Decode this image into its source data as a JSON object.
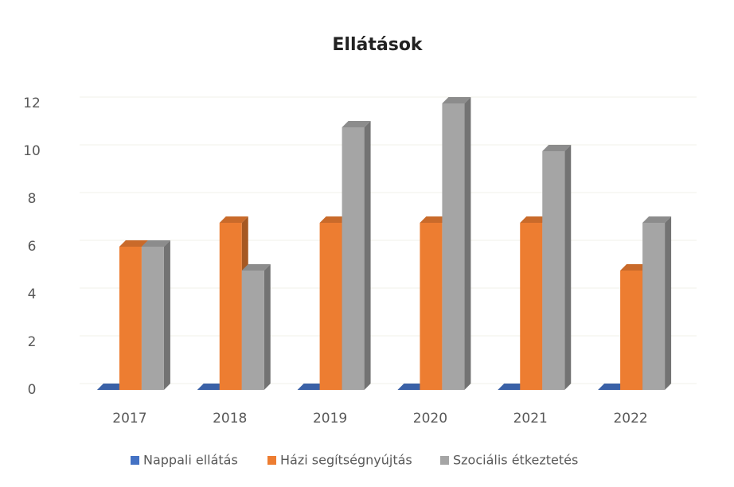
{
  "chart_data": {
    "type": "bar3d",
    "title": "Ellátások",
    "categories": [
      "2017",
      "2018",
      "2019",
      "2020",
      "2021",
      "2022"
    ],
    "series": [
      {
        "name": "Nappali ellátás",
        "color": "#4472c4",
        "values": [
          0,
          0,
          0,
          0,
          0,
          0
        ]
      },
      {
        "name": "Házi segítségnyújtás",
        "color": "#ed7d31",
        "values": [
          6,
          7,
          7,
          7,
          7,
          5
        ]
      },
      {
        "name": "Szociális étkeztetés",
        "color": "#a5a5a5",
        "values": [
          6,
          5,
          11,
          12,
          10,
          7
        ]
      }
    ],
    "ylim": [
      0,
      12
    ],
    "yticks": [
      0,
      2,
      4,
      6,
      8,
      10,
      12
    ],
    "grid": true,
    "legend": "bottom"
  }
}
